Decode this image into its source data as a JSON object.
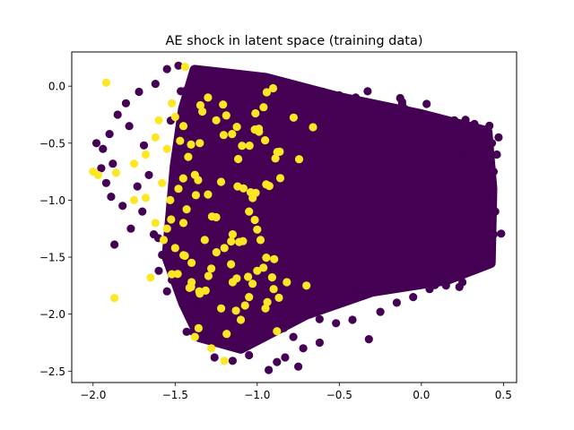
{
  "chart_data": {
    "type": "scatter",
    "title": "AE shock in latent space (training data)",
    "xlabel": "",
    "ylabel": "",
    "xlim": [
      -2.13,
      0.58
    ],
    "ylim": [
      -2.6,
      0.3
    ],
    "x_ticks": [
      {
        "value": -2.0,
        "label": "−2.0"
      },
      {
        "value": -1.5,
        "label": "−1.5"
      },
      {
        "value": -1.0,
        "label": "−1.0"
      },
      {
        "value": -0.5,
        "label": "−0.5"
      },
      {
        "value": 0.0,
        "label": "0.0"
      },
      {
        "value": 0.5,
        "label": "0.5"
      }
    ],
    "y_ticks": [
      {
        "value": 0.0,
        "label": "0.0"
      },
      {
        "value": -0.5,
        "label": "−0.5"
      },
      {
        "value": -1.0,
        "label": "−1.0"
      },
      {
        "value": -1.5,
        "label": "−1.5"
      },
      {
        "value": -2.0,
        "label": "−2.0"
      },
      {
        "value": -2.5,
        "label": "−2.5"
      }
    ],
    "grid": false,
    "legend": false,
    "colors": {
      "no_shock": "#440154",
      "shock": "#fde725"
    },
    "dense_region": [
      [
        -1.38,
        0.14
      ],
      [
        -0.95,
        0.07
      ],
      [
        -0.5,
        -0.1
      ],
      [
        0.0,
        -0.25
      ],
      [
        0.4,
        -0.4
      ],
      [
        0.43,
        -0.9
      ],
      [
        0.42,
        -1.55
      ],
      [
        0.15,
        -1.7
      ],
      [
        -0.3,
        -1.8
      ],
      [
        -0.7,
        -2.0
      ],
      [
        -1.1,
        -2.3
      ],
      [
        -1.35,
        -2.2
      ],
      [
        -1.45,
        -1.9
      ],
      [
        -1.55,
        -1.5
      ],
      [
        -1.5,
        -0.7
      ],
      [
        -1.45,
        -0.2
      ]
    ],
    "series": [
      {
        "color": "#440154",
        "points": [
          [
            -1.48,
            0.18
          ],
          [
            -1.55,
            0.15
          ],
          [
            -1.62,
            0.02
          ],
          [
            -1.72,
            -0.05
          ],
          [
            -1.8,
            -0.15
          ],
          [
            -1.85,
            -0.25
          ],
          [
            -1.78,
            -0.35
          ],
          [
            -1.9,
            -0.42
          ],
          [
            -1.94,
            -0.55
          ],
          [
            -1.98,
            -0.5
          ],
          [
            -1.88,
            -0.68
          ],
          [
            -1.92,
            -0.85
          ],
          [
            -1.89,
            -0.97
          ],
          [
            -1.95,
            -0.72
          ],
          [
            -1.82,
            -1.05
          ],
          [
            -1.77,
            -1.25
          ],
          [
            -1.7,
            -1.1
          ],
          [
            -1.63,
            -1.3
          ],
          [
            -1.58,
            -1.48
          ],
          [
            -1.6,
            -1.62
          ],
          [
            -1.52,
            -1.7
          ],
          [
            -1.55,
            -1.8
          ],
          [
            -1.44,
            -1.86
          ],
          [
            -1.4,
            -2.02
          ],
          [
            -1.35,
            -1.95
          ],
          [
            -1.3,
            -2.1
          ],
          [
            -1.25,
            -2.18
          ],
          [
            -1.2,
            -2.25
          ],
          [
            -1.26,
            -2.38
          ],
          [
            -1.15,
            -2.41
          ],
          [
            -1.05,
            -2.36
          ],
          [
            -0.93,
            -2.49
          ],
          [
            -0.88,
            -2.42
          ],
          [
            -0.83,
            -2.38
          ],
          [
            -0.75,
            -2.46
          ],
          [
            -0.72,
            -2.3
          ],
          [
            -0.78,
            -2.2
          ],
          [
            -0.62,
            -2.25
          ],
          [
            -0.52,
            -2.08
          ],
          [
            -0.42,
            -2.05
          ],
          [
            -0.32,
            -2.22
          ],
          [
            -0.25,
            -1.98
          ],
          [
            -0.15,
            -1.9
          ],
          [
            -0.05,
            -1.85
          ],
          [
            0.05,
            -1.78
          ],
          [
            0.15,
            -1.75
          ],
          [
            0.25,
            -1.72
          ],
          [
            0.35,
            -1.6
          ],
          [
            0.42,
            -1.5
          ],
          [
            0.44,
            -1.3
          ],
          [
            0.45,
            -1.1
          ],
          [
            0.43,
            -0.92
          ],
          [
            0.44,
            -0.75
          ],
          [
            0.46,
            -0.6
          ],
          [
            0.47,
            -0.45
          ],
          [
            0.43,
            -0.5
          ],
          [
            0.35,
            -0.38
          ],
          [
            0.28,
            -0.35
          ],
          [
            0.25,
            -0.55
          ],
          [
            0.2,
            -0.3
          ],
          [
            0.1,
            -0.28
          ],
          [
            0.0,
            -0.25
          ],
          [
            -0.1,
            -0.2
          ],
          [
            -0.2,
            -0.18
          ],
          [
            -0.3,
            -0.15
          ],
          [
            -0.4,
            -0.1
          ],
          [
            -0.5,
            -0.08
          ],
          [
            -0.6,
            -0.05
          ],
          [
            -0.7,
            -0.02
          ],
          [
            -0.8,
            0.02
          ],
          [
            -0.9,
            0.05
          ],
          [
            -1.0,
            0.08
          ],
          [
            -1.1,
            0.1
          ],
          [
            -1.2,
            0.12
          ],
          [
            -1.3,
            0.13
          ],
          [
            -1.87,
            -1.39
          ],
          [
            -1.33,
            0.1
          ],
          [
            -1.73,
            -0.88
          ],
          [
            -1.66,
            -0.78
          ],
          [
            -1.69,
            -0.52
          ]
        ]
      },
      {
        "color": "#fde725",
        "points": [
          [
            -1.92,
            0.03
          ],
          [
            -2.0,
            -0.75
          ],
          [
            -1.97,
            -0.78
          ],
          [
            -1.86,
            -0.76
          ],
          [
            -1.87,
            -1.86
          ],
          [
            -1.75,
            -0.68
          ],
          [
            -1.68,
            -0.6
          ],
          [
            -1.62,
            -0.45
          ],
          [
            -1.55,
            -0.55
          ],
          [
            -1.6,
            -0.3
          ],
          [
            -1.52,
            -0.15
          ],
          [
            -1.45,
            -0.35
          ],
          [
            -1.42,
            -0.62
          ],
          [
            -1.48,
            -0.9
          ],
          [
            -1.53,
            -1.0
          ],
          [
            -1.62,
            -1.2
          ],
          [
            -1.57,
            -1.35
          ],
          [
            -1.5,
            -1.42
          ],
          [
            -1.45,
            -1.2
          ],
          [
            -1.4,
            -1.55
          ],
          [
            -1.32,
            -1.35
          ],
          [
            -1.28,
            -1.6
          ],
          [
            -1.2,
            -1.42
          ],
          [
            -1.15,
            -1.72
          ],
          [
            -1.05,
            -1.85
          ],
          [
            -1.0,
            -1.62
          ],
          [
            -0.95,
            -1.95
          ],
          [
            -0.9,
            -1.78
          ],
          [
            -1.35,
            -1.82
          ],
          [
            -1.1,
            -2.05
          ],
          [
            -1.22,
            -1.95
          ],
          [
            -1.38,
            -2.2
          ],
          [
            -1.2,
            -2.41
          ],
          [
            -1.52,
            -1.65
          ],
          [
            -1.65,
            -1.68
          ],
          [
            -1.43,
            -1.08
          ],
          [
            -1.3,
            -0.95
          ],
          [
            -1.25,
            -1.15
          ],
          [
            -1.05,
            -1.1
          ],
          [
            -1.35,
            -0.5
          ],
          [
            -0.82,
            -1.72
          ],
          [
            -1.15,
            -1.3
          ],
          [
            -0.98,
            -1.35
          ],
          [
            -1.44,
            0.17
          ],
          [
            -1.3,
            -0.1
          ],
          [
            -1.25,
            -0.3
          ],
          [
            -0.66,
            -0.36
          ],
          [
            -0.7,
            -1.75
          ],
          [
            -0.88,
            -2.15
          ],
          [
            -1.75,
            -1.0
          ],
          [
            -1.47,
            -0.48
          ],
          [
            -1.58,
            -0.85
          ],
          [
            -1.12,
            -0.88
          ],
          [
            -1.4,
            -1.72
          ],
          [
            -1.28,
            -2.3
          ],
          [
            -1.68,
            -0.98
          ],
          [
            -1.5,
            -0.27
          ],
          [
            -1.55,
            -1.25
          ]
        ]
      }
    ]
  }
}
